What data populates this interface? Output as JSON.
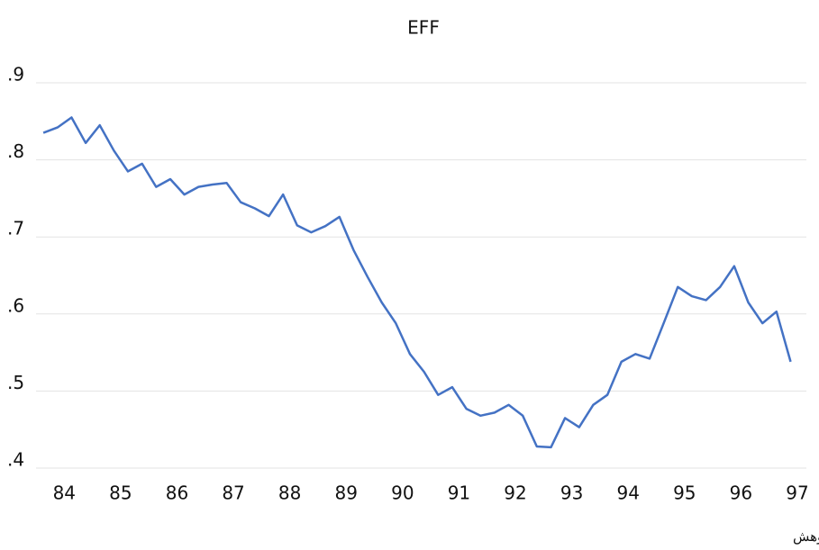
{
  "chart_data": {
    "type": "line",
    "title": "EFF",
    "x": [
      83.63,
      83.88,
      84.13,
      84.38,
      84.63,
      84.88,
      85.13,
      85.38,
      85.63,
      85.88,
      86.13,
      86.38,
      86.63,
      86.88,
      87.13,
      87.38,
      87.63,
      87.88,
      88.13,
      88.38,
      88.63,
      88.88,
      89.13,
      89.38,
      89.63,
      89.88,
      90.13,
      90.38,
      90.63,
      90.88,
      91.13,
      91.38,
      91.63,
      91.88,
      92.13,
      92.38,
      92.63,
      92.88,
      93.13,
      93.38,
      93.63,
      93.88,
      94.13,
      94.38,
      94.63,
      94.88,
      95.13,
      95.38,
      95.63,
      95.88,
      96.13,
      96.38,
      96.63,
      96.88
    ],
    "series": [
      {
        "name": "EFF",
        "color": "#4472c4",
        "values": [
          0.835,
          0.842,
          0.855,
          0.822,
          0.845,
          0.812,
          0.785,
          0.795,
          0.765,
          0.775,
          0.755,
          0.765,
          0.768,
          0.77,
          0.745,
          0.737,
          0.727,
          0.755,
          0.715,
          0.706,
          0.714,
          0.726,
          0.683,
          0.648,
          0.615,
          0.588,
          0.548,
          0.525,
          0.495,
          0.505,
          0.477,
          0.468,
          0.472,
          0.482,
          0.468,
          0.428,
          0.427,
          0.465,
          0.453,
          0.482,
          0.495,
          0.538,
          0.548,
          0.542,
          0.588,
          0.635,
          0.623,
          0.618,
          0.635,
          0.662,
          0.615,
          0.588,
          0.603,
          0.538
        ]
      }
    ],
    "xlim": [
      83.5,
      97.16
    ],
    "xticks": [
      84,
      85,
      86,
      87,
      88,
      89,
      90,
      91,
      92,
      93,
      94,
      95,
      96,
      97
    ],
    "ylim": [
      0.4,
      0.9
    ],
    "yticks": [
      {
        "value": 0.4,
        "label": ".4"
      },
      {
        "value": 0.5,
        "label": ".5"
      },
      {
        "value": 0.6,
        "label": ".6"
      },
      {
        "value": 0.7,
        "label": ".7"
      },
      {
        "value": 0.8,
        "label": ".8"
      },
      {
        "value": 0.9,
        "label": ".9"
      }
    ],
    "grid": true,
    "source": "مأخذ: یافته‌های پژوهش"
  }
}
